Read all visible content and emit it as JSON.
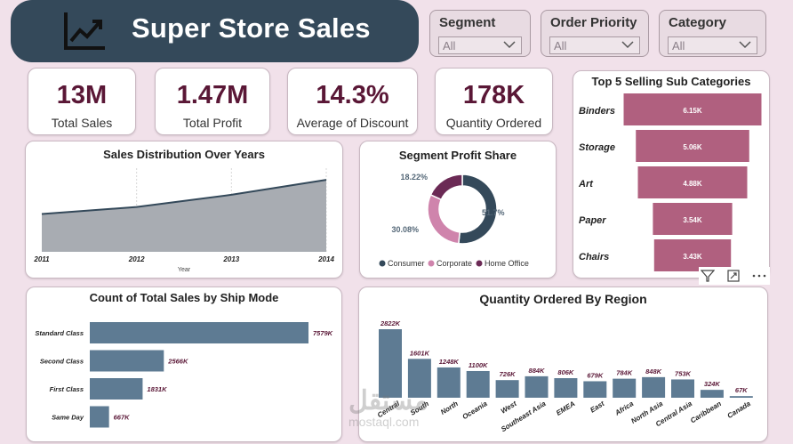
{
  "header": {
    "title": "Super Store Sales",
    "logo_icon": "line-chart-trend-icon"
  },
  "slicers": [
    {
      "label": "Segment",
      "value": "All"
    },
    {
      "label": "Order Priority",
      "value": "All"
    },
    {
      "label": "Category",
      "value": "All"
    }
  ],
  "kpis": [
    {
      "value": "13M",
      "caption": "Total Sales"
    },
    {
      "value": "1.47M",
      "caption": "Total Profit"
    },
    {
      "value": "14.3%",
      "caption": "Average of Discount"
    },
    {
      "value": "178K",
      "caption": "Quantity Ordered"
    }
  ],
  "colors": {
    "navy": "#34495a",
    "mauve": "#b0607f",
    "steel": "#5e7b93",
    "corporate": "#cf84ac",
    "home_office": "#6b2a55",
    "accent_text": "#5a1736"
  },
  "chart_data": [
    {
      "id": "sales-distribution",
      "type": "area",
      "title": "Sales Distribution Over Years",
      "xlabel": "Year",
      "x": [
        "2011",
        "2012",
        "2013",
        "2014"
      ],
      "values": [
        2.26,
        2.68,
        3.41,
        4.3
      ],
      "ylim": [
        0,
        5
      ],
      "grid": true
    },
    {
      "id": "segment-profit-share",
      "type": "pie",
      "title": "Segment Profit Share",
      "categories": [
        "Consumer",
        "Corporate",
        "Home Office"
      ],
      "values": [
        51.7,
        30.08,
        18.22
      ],
      "labels": [
        "51.7%",
        "30.08%",
        "18.22%"
      ],
      "legend": "bottom"
    },
    {
      "id": "top5-subcategories",
      "type": "bar",
      "title": "Top 5 Selling Sub Categories",
      "categories": [
        "Binders",
        "Storage",
        "Art",
        "Paper",
        "Chairs"
      ],
      "values": [
        6.15,
        5.06,
        4.88,
        3.54,
        3.43
      ],
      "labels": [
        "6.15K",
        "5.06K",
        "4.88K",
        "3.54K",
        "3.43K"
      ]
    },
    {
      "id": "ship-mode",
      "type": "bar",
      "title": "Count of Total Sales by Ship Mode",
      "categories": [
        "Standard Class",
        "Second Class",
        "First Class",
        "Same Day"
      ],
      "values": [
        7579,
        2566,
        1831,
        667
      ],
      "labels": [
        "7579K",
        "2566K",
        "1831K",
        "667K"
      ]
    },
    {
      "id": "quantity-by-region",
      "type": "bar",
      "title": "Quantity Ordered By Region",
      "categories": [
        "Central",
        "South",
        "North",
        "Oceania",
        "West",
        "Southeast Asia",
        "EMEA",
        "East",
        "Africa",
        "North Asia",
        "Central Asia",
        "Caribbean",
        "Canada"
      ],
      "values": [
        2822,
        1601,
        1248,
        1100,
        726,
        884,
        806,
        679,
        784,
        848,
        753,
        324,
        67
      ],
      "labels": [
        "2822K",
        "1601K",
        "1248K",
        "1100K",
        "726K",
        "884K",
        "806K",
        "679K",
        "784K",
        "848K",
        "753K",
        "324K",
        "67K"
      ]
    }
  ],
  "watermark": {
    "arabic": "مستقل",
    "latin": "mostaql.com"
  }
}
